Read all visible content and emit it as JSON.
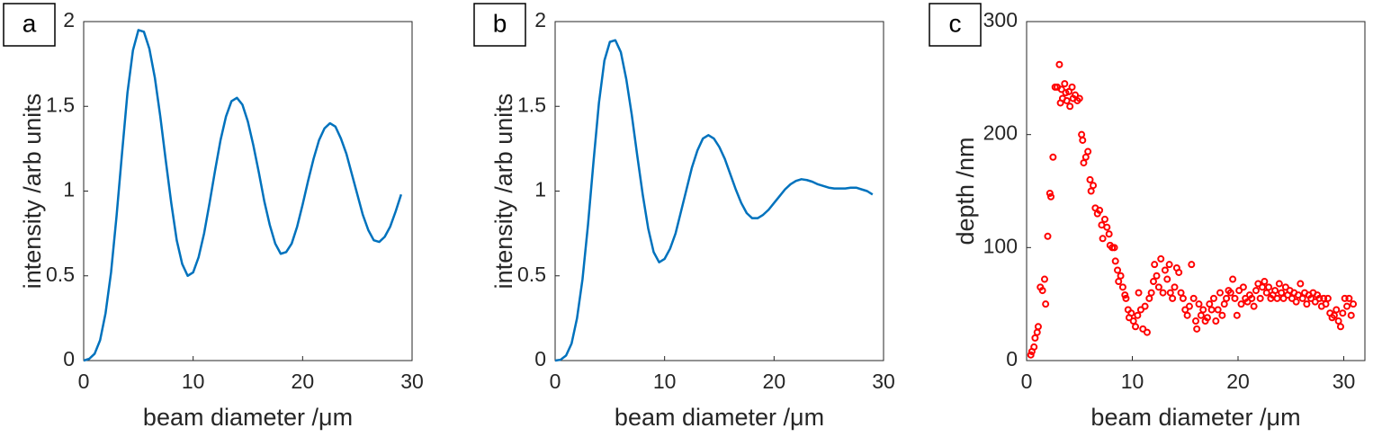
{
  "chart_data": [
    {
      "type": "line",
      "panel_label": "a",
      "xlabel": "beam diameter /μm",
      "ylabel": "intensity /arb units",
      "color": "#0072bd",
      "xlim": [
        0,
        30
      ],
      "ylim": [
        0,
        2
      ],
      "xticks": [
        0,
        10,
        20,
        30
      ],
      "yticks": [
        0,
        0.5,
        1,
        1.5,
        2
      ],
      "x": [
        0,
        0.5,
        1,
        1.5,
        2,
        2.5,
        3,
        3.5,
        4,
        4.5,
        5,
        5.5,
        6,
        6.5,
        7,
        7.5,
        8,
        8.5,
        9,
        9.5,
        10,
        10.5,
        11,
        11.5,
        12,
        12.5,
        13,
        13.5,
        14,
        14.5,
        15,
        15.5,
        16,
        16.5,
        17,
        17.5,
        18,
        18.5,
        19,
        19.5,
        20,
        20.5,
        21,
        21.5,
        22,
        22.5,
        23,
        23.5,
        24,
        24.5,
        25,
        25.5,
        26,
        26.5,
        27,
        27.5,
        28,
        28.5,
        29
      ],
      "values": [
        0,
        0.01,
        0.04,
        0.12,
        0.28,
        0.52,
        0.85,
        1.22,
        1.58,
        1.83,
        1.95,
        1.94,
        1.84,
        1.67,
        1.44,
        1.18,
        0.93,
        0.71,
        0.57,
        0.5,
        0.52,
        0.61,
        0.75,
        0.93,
        1.12,
        1.3,
        1.44,
        1.53,
        1.55,
        1.51,
        1.41,
        1.27,
        1.11,
        0.94,
        0.8,
        0.69,
        0.63,
        0.64,
        0.69,
        0.79,
        0.92,
        1.06,
        1.19,
        1.3,
        1.37,
        1.4,
        1.38,
        1.31,
        1.22,
        1.1,
        0.98,
        0.86,
        0.77,
        0.71,
        0.7,
        0.73,
        0.79,
        0.88,
        0.98
      ]
    },
    {
      "type": "line",
      "panel_label": "b",
      "xlabel": "beam diameter /μm",
      "ylabel": "intensity /arb units",
      "color": "#0072bd",
      "xlim": [
        0,
        30
      ],
      "ylim": [
        0,
        2
      ],
      "xticks": [
        0,
        10,
        20,
        30
      ],
      "yticks": [
        0,
        0.5,
        1,
        1.5,
        2
      ],
      "x": [
        0,
        0.5,
        1,
        1.5,
        2,
        2.5,
        3,
        3.5,
        4,
        4.5,
        5,
        5.5,
        6,
        6.5,
        7,
        7.5,
        8,
        8.5,
        9,
        9.5,
        10,
        10.5,
        11,
        11.5,
        12,
        12.5,
        13,
        13.5,
        14,
        14.5,
        15,
        15.5,
        16,
        16.5,
        17,
        17.5,
        18,
        18.5,
        19,
        19.5,
        20,
        20.5,
        21,
        21.5,
        22,
        22.5,
        23,
        23.5,
        24,
        24.5,
        25,
        25.5,
        26,
        26.5,
        27,
        27.5,
        28,
        28.5,
        29
      ],
      "values": [
        0,
        0.005,
        0.03,
        0.1,
        0.25,
        0.48,
        0.8,
        1.17,
        1.52,
        1.77,
        1.88,
        1.89,
        1.82,
        1.66,
        1.45,
        1.21,
        0.98,
        0.78,
        0.64,
        0.58,
        0.6,
        0.66,
        0.75,
        0.88,
        1.01,
        1.14,
        1.24,
        1.31,
        1.33,
        1.31,
        1.26,
        1.19,
        1.1,
        1.01,
        0.93,
        0.87,
        0.84,
        0.84,
        0.86,
        0.89,
        0.93,
        0.97,
        1.01,
        1.04,
        1.06,
        1.07,
        1.065,
        1.055,
        1.04,
        1.03,
        1.02,
        1.015,
        1.015,
        1.015,
        1.02,
        1.02,
        1.01,
        1.0,
        0.98
      ]
    },
    {
      "type": "scatter",
      "panel_label": "c",
      "xlabel": "beam diameter /μm",
      "ylabel": "depth /nm",
      "color": "#ff0000",
      "xlim": [
        0,
        32
      ],
      "ylim": [
        0,
        300
      ],
      "xticks": [
        0,
        10,
        20,
        30
      ],
      "yticks": [
        0,
        100,
        200,
        300
      ],
      "x": [
        0.4,
        0.5,
        0.7,
        0.8,
        1.0,
        1.1,
        1.3,
        1.5,
        1.7,
        1.8,
        2.0,
        2.2,
        2.3,
        2.5,
        2.7,
        2.9,
        3.1,
        3.2,
        3.3,
        3.4,
        3.6,
        3.7,
        3.8,
        4.0,
        4.1,
        4.3,
        4.4,
        4.6,
        4.8,
        5.0,
        5.2,
        5.3,
        5.4,
        5.6,
        5.8,
        6.0,
        6.1,
        6.3,
        6.5,
        6.7,
        6.9,
        7.1,
        7.2,
        7.4,
        7.6,
        7.8,
        7.9,
        8.1,
        8.3,
        8.4,
        8.6,
        8.7,
        8.9,
        9.1,
        9.3,
        9.4,
        9.6,
        9.7,
        9.9,
        10.1,
        10.3,
        10.5,
        10.6,
        10.8,
        11.0,
        11.2,
        11.4,
        11.6,
        11.8,
        12.0,
        12.1,
        12.3,
        12.5,
        12.7,
        12.9,
        13.1,
        13.3,
        13.5,
        13.6,
        13.8,
        14.0,
        14.2,
        14.4,
        14.6,
        14.8,
        15.0,
        15.2,
        15.4,
        15.6,
        15.8,
        16.0,
        16.1,
        16.3,
        16.5,
        16.7,
        16.9,
        17.1,
        17.3,
        17.5,
        17.7,
        17.9,
        18.1,
        18.3,
        18.5,
        18.7,
        18.9,
        19.1,
        19.3,
        19.5,
        19.7,
        19.9,
        20.1,
        20.3,
        20.5,
        20.7,
        20.9,
        21.1,
        21.3,
        21.5,
        21.7,
        21.9,
        22.1,
        22.3,
        22.5,
        22.7,
        22.9,
        23.1,
        23.3,
        23.5,
        23.7,
        23.9,
        24.1,
        24.3,
        24.5,
        24.7,
        24.9,
        25.1,
        25.3,
        25.5,
        25.7,
        25.9,
        26.1,
        26.3,
        26.5,
        26.7,
        26.9,
        27.1,
        27.3,
        27.5,
        27.7,
        27.9,
        28.1,
        28.3,
        28.5,
        28.7,
        28.9,
        29.1,
        29.3,
        29.5,
        29.7,
        29.9,
        30.1,
        30.3,
        30.5,
        30.7,
        30.9
      ],
      "values": [
        5,
        8,
        12,
        20,
        25,
        30,
        65,
        62,
        72,
        50,
        110,
        148,
        145,
        180,
        242,
        242,
        262,
        228,
        240,
        232,
        245,
        237,
        230,
        238,
        225,
        242,
        232,
        235,
        230,
        232,
        200,
        195,
        175,
        180,
        185,
        160,
        150,
        155,
        135,
        130,
        133,
        120,
        108,
        125,
        118,
        112,
        102,
        100,
        100,
        88,
        80,
        70,
        75,
        65,
        58,
        55,
        45,
        38,
        42,
        35,
        30,
        40,
        60,
        45,
        28,
        48,
        25,
        55,
        60,
        70,
        85,
        75,
        65,
        90,
        60,
        80,
        72,
        85,
        60,
        55,
        65,
        82,
        78,
        60,
        55,
        45,
        40,
        48,
        85,
        55,
        35,
        28,
        50,
        40,
        45,
        35,
        38,
        50,
        45,
        55,
        35,
        45,
        60,
        40,
        50,
        55,
        62,
        60,
        72,
        55,
        40,
        62,
        50,
        65,
        55,
        52,
        58,
        55,
        48,
        62,
        68,
        55,
        65,
        70,
        60,
        65,
        55,
        58,
        62,
        55,
        68,
        60,
        55,
        65,
        58,
        62,
        55,
        60,
        52,
        58,
        68,
        55,
        60,
        50,
        58,
        55,
        60,
        52,
        58,
        55,
        48,
        55,
        50,
        55,
        42,
        38,
        40,
        45,
        35,
        30,
        42,
        55,
        48,
        55,
        40,
        50
      ]
    }
  ]
}
